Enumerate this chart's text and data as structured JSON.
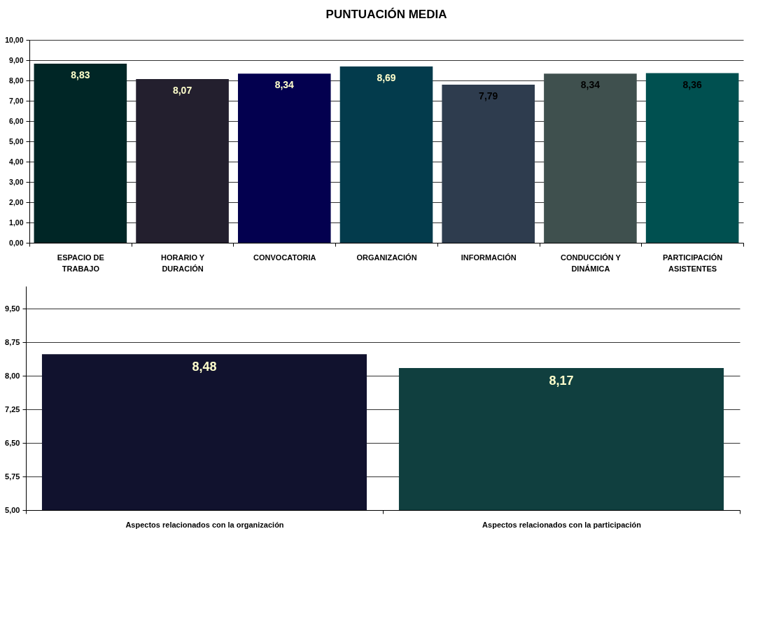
{
  "chart_data": [
    {
      "type": "bar",
      "title": "PUNTUACIÓN MEDIA",
      "categories": [
        "ESPACIO DE TRABAJO",
        "HORARIO Y DURACIÓN",
        "CONVOCATORIA",
        "ORGANIZACIÓN",
        "INFORMACIÓN",
        "CONDUCCIÓN Y DINÁMICA",
        "PARTICIPACIÓN ASISTENTES"
      ],
      "values": [
        8.83,
        8.07,
        8.34,
        8.69,
        7.79,
        8.34,
        8.36
      ],
      "value_labels": [
        "8,83",
        "8,07",
        "8,34",
        "8,69",
        "7,79",
        "8,34",
        "8,36"
      ],
      "colors": [
        "#002626",
        "#231f2e",
        "#03004f",
        "#033b4c",
        "#2e3c4e",
        "#3f504e",
        "#005050"
      ],
      "ylim": [
        0,
        10
      ],
      "yticks": [
        {
          "value": 0,
          "label": "0,00"
        },
        {
          "value": 1,
          "label": "1,00"
        },
        {
          "value": 2,
          "label": "2,00"
        },
        {
          "value": 3,
          "label": "3,00"
        },
        {
          "value": 4,
          "label": "4,00"
        },
        {
          "value": 5,
          "label": "5,00"
        },
        {
          "value": 6,
          "label": "6,00"
        },
        {
          "value": 7,
          "label": "7,00"
        },
        {
          "value": 8,
          "label": "8,00"
        },
        {
          "value": 9,
          "label": "9,00"
        },
        {
          "value": 10,
          "label": "10,00"
        }
      ],
      "grid": "y"
    },
    {
      "type": "bar",
      "categories": [
        "Aspectos relacionados con la organización",
        "Aspectos relacionados con la participación"
      ],
      "values": [
        8.48,
        8.17
      ],
      "value_labels": [
        "8,48",
        "8,17"
      ],
      "colors": [
        "#11122e",
        "#103f3f"
      ],
      "ylim": [
        5,
        10
      ],
      "yticks": [
        {
          "value": 5,
          "label": "5,00"
        },
        {
          "value": 5.75,
          "label": "5,75"
        },
        {
          "value": 6.5,
          "label": "6,50"
        },
        {
          "value": 7.25,
          "label": "7,25"
        },
        {
          "value": 8,
          "label": "8,00"
        },
        {
          "value": 8.75,
          "label": "8,75"
        },
        {
          "value": 9.5,
          "label": "9,50"
        }
      ],
      "grid": "y"
    }
  ]
}
